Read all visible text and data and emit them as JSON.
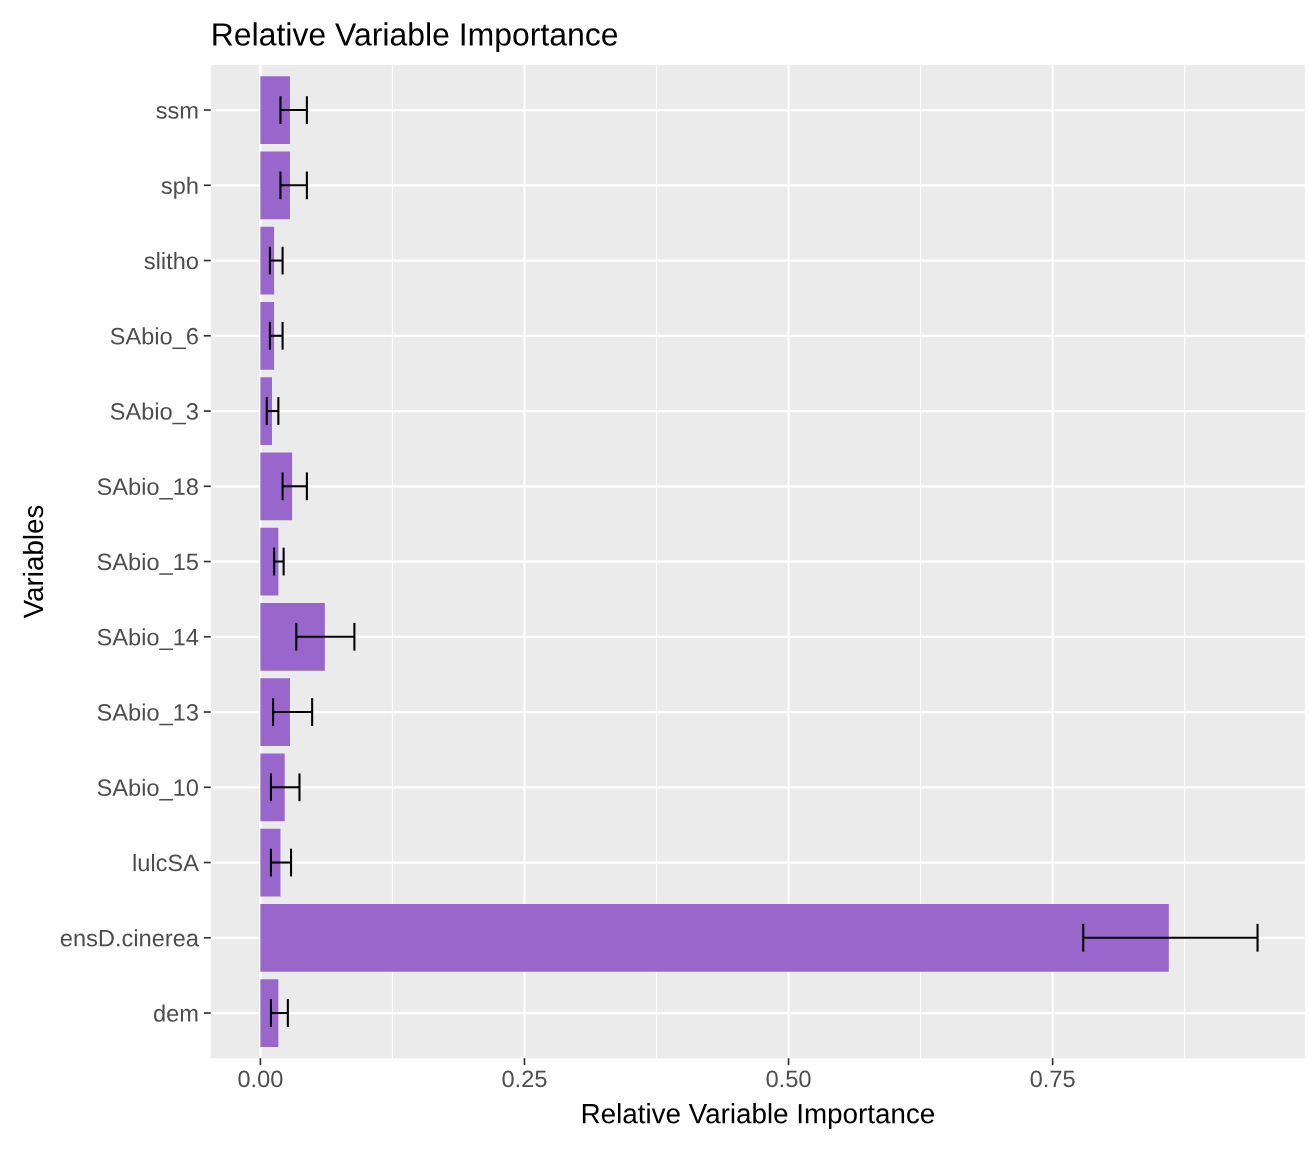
{
  "chart_data": {
    "type": "bar",
    "orientation": "horizontal",
    "title": "Relative Variable Importance",
    "xlabel": "Relative Variable Importance",
    "ylabel": "Variables",
    "categories": [
      "ssm",
      "sph",
      "slitho",
      "SAbio_6",
      "SAbio_3",
      "SAbio_18",
      "SAbio_15",
      "SAbio_14",
      "SAbio_13",
      "SAbio_10",
      "lulcSA",
      "ensD.cinerea",
      "dem"
    ],
    "values": [
      0.028,
      0.028,
      0.013,
      0.013,
      0.011,
      0.03,
      0.017,
      0.061,
      0.028,
      0.023,
      0.019,
      0.86,
      0.017
    ],
    "errors": [
      [
        0.019,
        0.044
      ],
      [
        0.019,
        0.044
      ],
      [
        0.009,
        0.021
      ],
      [
        0.009,
        0.021
      ],
      [
        0.006,
        0.017
      ],
      [
        0.021,
        0.044
      ],
      [
        0.013,
        0.022
      ],
      [
        0.034,
        0.089
      ],
      [
        0.012,
        0.049
      ],
      [
        0.01,
        0.037
      ],
      [
        0.01,
        0.029
      ],
      [
        0.779,
        0.944
      ],
      [
        0.01,
        0.026
      ]
    ],
    "color": "#9966cc",
    "xlim": [
      -0.047,
      0.989
    ],
    "xticks": [
      {
        "value": 0,
        "label": "0.00"
      },
      {
        "value": 0.25,
        "label": "0.25"
      },
      {
        "value": 0.5,
        "label": "0.50"
      },
      {
        "value": 0.75,
        "label": "0.75"
      }
    ],
    "grid": true
  }
}
